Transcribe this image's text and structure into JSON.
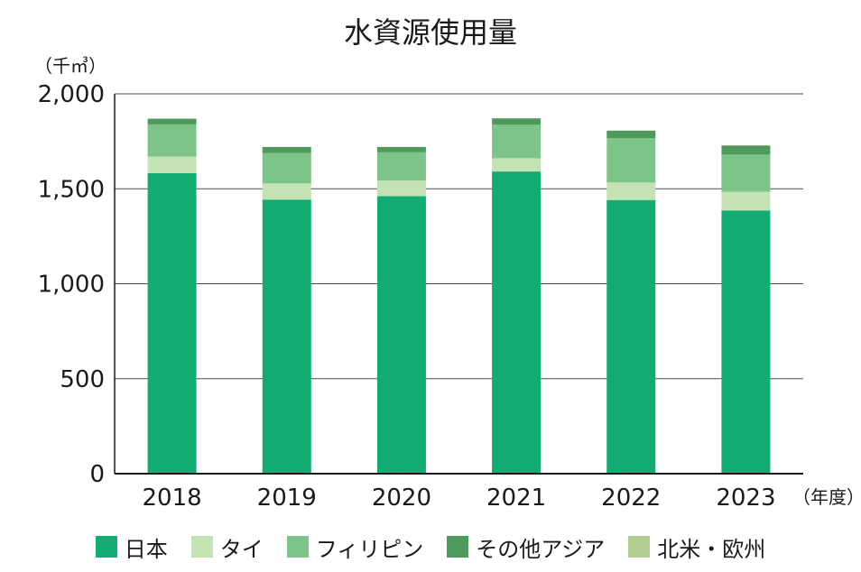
{
  "chart_data": {
    "type": "bar",
    "stacked": true,
    "title": "水資源使用量",
    "ylabel": "（千㎥）",
    "xlabel": "（年度）",
    "ylim": [
      0,
      2000
    ],
    "yticks": [
      0,
      500,
      1000,
      1500,
      2000
    ],
    "ytick_labels": [
      "0",
      "500",
      "1,000",
      "1,500",
      "2,000"
    ],
    "grid": true,
    "legend_position": "bottom",
    "categories": [
      "2018",
      "2019",
      "2020",
      "2021",
      "2022",
      "2023"
    ],
    "series": [
      {
        "name": "日本",
        "color": "#12ab72",
        "values": [
          1582,
          1443,
          1461,
          1591,
          1441,
          1386
        ]
      },
      {
        "name": "タイ",
        "color": "#c3e3b2",
        "values": [
          88,
          85,
          82,
          70,
          92,
          98
        ]
      },
      {
        "name": "フィリピン",
        "color": "#7cc487",
        "values": [
          169,
          161,
          149,
          176,
          233,
          196
        ]
      },
      {
        "name": "その他アジア",
        "color": "#4e9a5c",
        "values": [
          30,
          31,
          28,
          34,
          40,
          48
        ]
      },
      {
        "name": "北米・欧州",
        "color": "#b3ce92",
        "values": [
          1,
          1,
          1,
          1,
          1,
          1
        ]
      }
    ]
  }
}
